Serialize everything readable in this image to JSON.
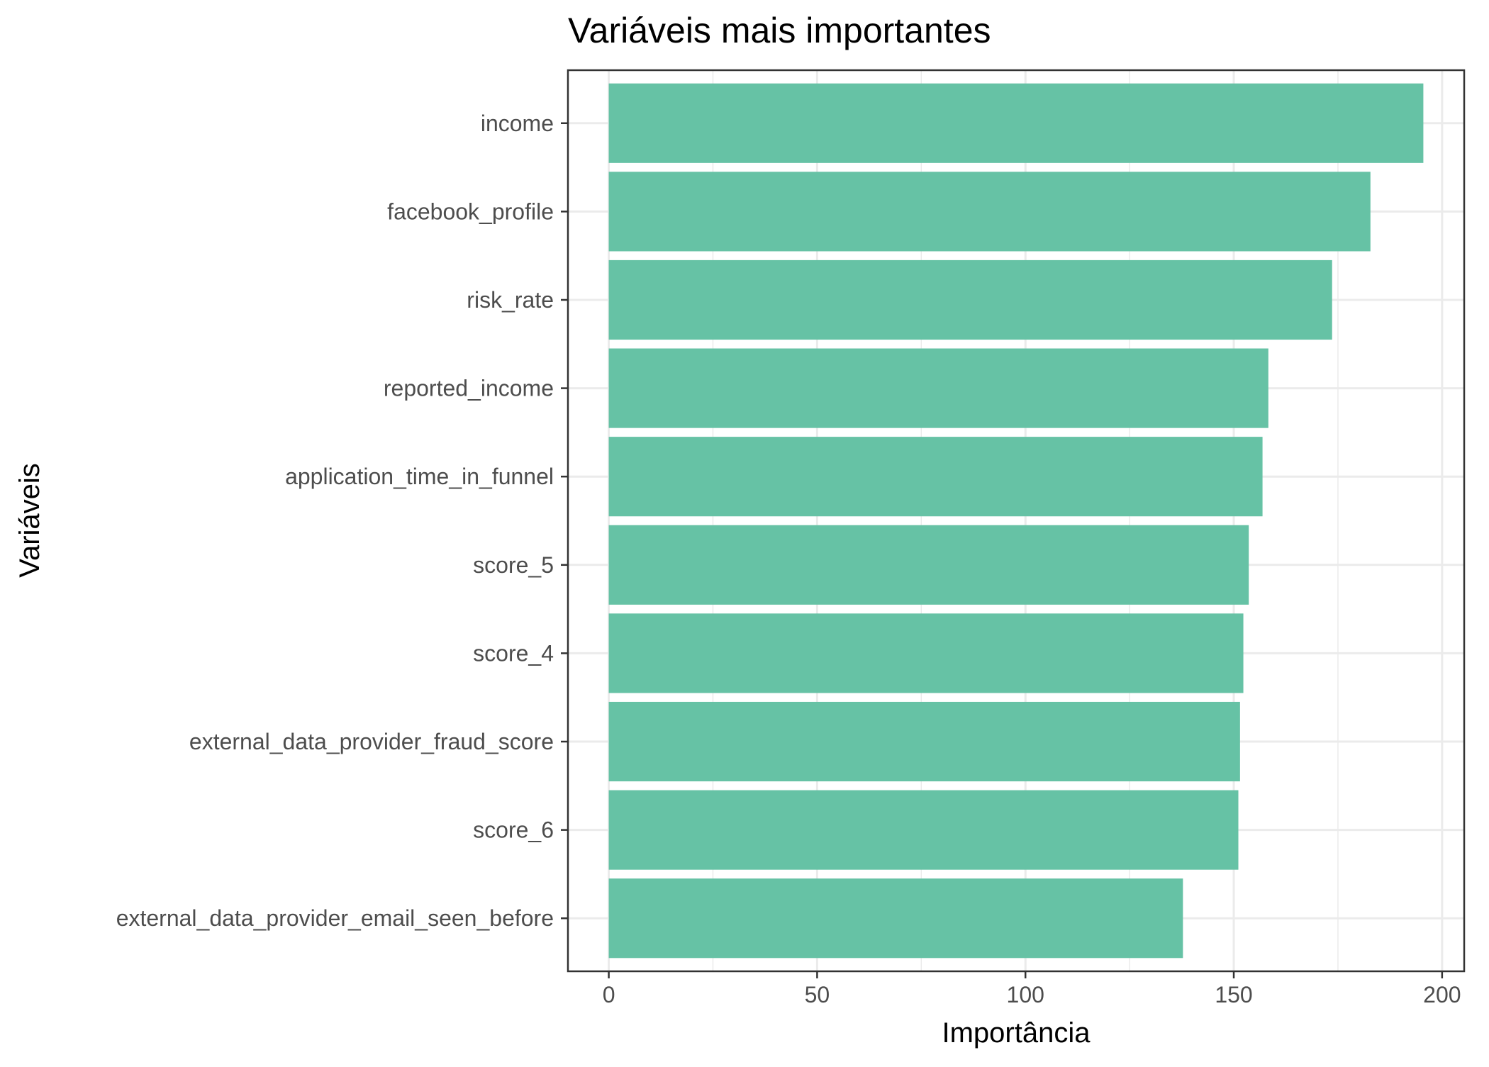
{
  "chart_data": {
    "type": "bar",
    "orientation": "horizontal",
    "title": "Variáveis mais importantes",
    "xlabel": "Importância",
    "ylabel": "Variáveis",
    "categories": [
      "income",
      "facebook_profile",
      "risk_rate",
      "reported_income",
      "application_time_in_funnel",
      "score_5",
      "score_4",
      "external_data_provider_fraud_score",
      "score_6",
      "external_data_provider_email_seen_before"
    ],
    "values": [
      195.5,
      182.8,
      173.6,
      158.3,
      156.9,
      153.6,
      152.3,
      151.5,
      151.1,
      137.8
    ],
    "xlim": [
      -9.8,
      205.3
    ],
    "xticks": [
      0,
      50,
      100,
      150,
      200
    ],
    "xtick_labels": [
      "0",
      "50",
      "100",
      "150",
      "200"
    ],
    "grid": true,
    "bar_color": "#66c2a5",
    "panel_border_color": "#333333"
  }
}
